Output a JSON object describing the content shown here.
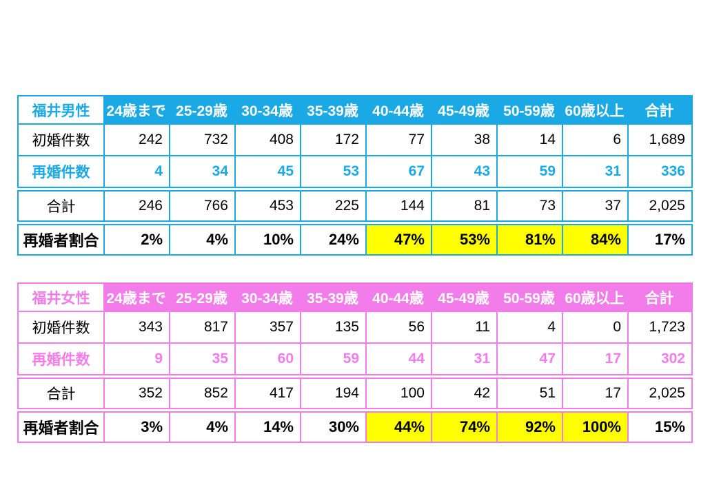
{
  "page": {
    "background": "#FFFFFF"
  },
  "chart_data": [
    {
      "type": "table",
      "title": "福井男性",
      "theme_color": "#1BA9E5",
      "highlight_color": "#FFFF00",
      "columns": [
        "24歳まで",
        "25-29歳",
        "30-34歳",
        "35-39歳",
        "40-44歳",
        "45-49歳",
        "50-59歳",
        "60歳以上",
        "合計"
      ],
      "rows": [
        {
          "label": "初婚件数",
          "style": "normal",
          "values": [
            "242",
            "732",
            "408",
            "172",
            "77",
            "38",
            "14",
            "6",
            "1,689"
          ]
        },
        {
          "label": "再婚件数",
          "style": "accent",
          "values": [
            "4",
            "34",
            "45",
            "53",
            "67",
            "43",
            "59",
            "31",
            "336"
          ]
        },
        {
          "label": "合計",
          "style": "normal",
          "values": [
            "246",
            "766",
            "453",
            "225",
            "144",
            "81",
            "73",
            "37",
            "2,025"
          ]
        },
        {
          "label": "再婚者割合",
          "style": "percent",
          "values": [
            "2%",
            "4%",
            "10%",
            "24%",
            "47%",
            "53%",
            "81%",
            "84%",
            "17%"
          ],
          "highlight": [
            false,
            false,
            false,
            false,
            true,
            true,
            true,
            true,
            false
          ]
        }
      ]
    },
    {
      "type": "table",
      "title": "福井女性",
      "theme_color": "#F27CEA",
      "highlight_color": "#FFFF00",
      "columns": [
        "24歳まで",
        "25-29歳",
        "30-34歳",
        "35-39歳",
        "40-44歳",
        "45-49歳",
        "50-59歳",
        "60歳以上",
        "合計"
      ],
      "rows": [
        {
          "label": "初婚件数",
          "style": "normal",
          "values": [
            "343",
            "817",
            "357",
            "135",
            "56",
            "11",
            "4",
            "0",
            "1,723"
          ]
        },
        {
          "label": "再婚件数",
          "style": "accent",
          "values": [
            "9",
            "35",
            "60",
            "59",
            "44",
            "31",
            "47",
            "17",
            "302"
          ]
        },
        {
          "label": "合計",
          "style": "normal",
          "values": [
            "352",
            "852",
            "417",
            "194",
            "100",
            "42",
            "51",
            "17",
            "2,025"
          ]
        },
        {
          "label": "再婚者割合",
          "style": "percent",
          "values": [
            "3%",
            "4%",
            "14%",
            "30%",
            "44%",
            "74%",
            "92%",
            "100%",
            "15%"
          ],
          "highlight": [
            false,
            false,
            false,
            false,
            true,
            true,
            true,
            true,
            false
          ]
        }
      ]
    }
  ]
}
